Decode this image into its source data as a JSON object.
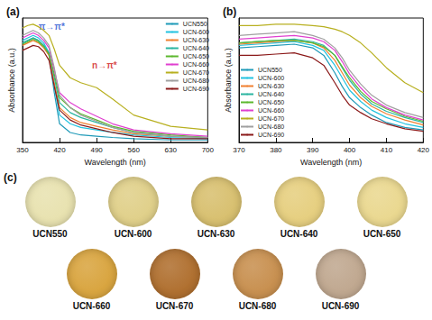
{
  "chart_data": [
    {
      "type": "line",
      "title": "(a)",
      "x_label": "Wavelength (nm)",
      "y_label": "Absorbance (a.u.)",
      "x": [
        350,
        360,
        370,
        380,
        390,
        400,
        410,
        420,
        440,
        460,
        490,
        520,
        560,
        630,
        700
      ],
      "xlim": [
        350,
        700
      ],
      "xticks": [
        350,
        420,
        490,
        560,
        630,
        700
      ],
      "ylim": [
        0,
        1
      ],
      "tick_labels": "x",
      "legend": "upper right",
      "series": [
        {
          "name": "UCN550",
          "color": "#1f9ab8",
          "values": [
            0.8,
            0.82,
            0.84,
            0.82,
            0.78,
            0.7,
            0.4,
            0.15,
            0.08,
            0.06,
            0.05,
            0.04,
            0.03,
            0.02,
            0.02
          ]
        },
        {
          "name": "UCN-600",
          "color": "#22c3e0",
          "values": [
            0.82,
            0.84,
            0.86,
            0.84,
            0.8,
            0.72,
            0.45,
            0.22,
            0.15,
            0.12,
            0.1,
            0.08,
            0.06,
            0.04,
            0.03
          ]
        },
        {
          "name": "UCN-630",
          "color": "#f08030",
          "values": [
            0.78,
            0.8,
            0.82,
            0.8,
            0.76,
            0.7,
            0.48,
            0.28,
            0.2,
            0.16,
            0.13,
            0.1,
            0.07,
            0.05,
            0.04
          ]
        },
        {
          "name": "UCN-640",
          "color": "#2bb5a0",
          "values": [
            0.8,
            0.82,
            0.84,
            0.82,
            0.78,
            0.72,
            0.52,
            0.32,
            0.24,
            0.2,
            0.16,
            0.12,
            0.08,
            0.05,
            0.04
          ]
        },
        {
          "name": "UCN-650",
          "color": "#5cb82e",
          "values": [
            0.79,
            0.81,
            0.83,
            0.81,
            0.77,
            0.71,
            0.55,
            0.36,
            0.28,
            0.23,
            0.18,
            0.13,
            0.09,
            0.06,
            0.04
          ]
        },
        {
          "name": "UCN-660",
          "color": "#e040d0",
          "values": [
            0.84,
            0.86,
            0.88,
            0.86,
            0.82,
            0.76,
            0.58,
            0.4,
            0.32,
            0.27,
            0.21,
            0.15,
            0.1,
            0.07,
            0.05
          ]
        },
        {
          "name": "UCN-670",
          "color": "#b8b020",
          "values": [
            0.92,
            0.94,
            0.95,
            0.93,
            0.9,
            0.86,
            0.75,
            0.62,
            0.52,
            0.48,
            0.44,
            0.35,
            0.22,
            0.13,
            0.1
          ]
        },
        {
          "name": "UCN-680",
          "color": "#a0a0a0",
          "values": [
            0.86,
            0.88,
            0.9,
            0.88,
            0.84,
            0.78,
            0.6,
            0.38,
            0.28,
            0.22,
            0.17,
            0.12,
            0.08,
            0.05,
            0.04
          ]
        },
        {
          "name": "UCN-690",
          "color": "#8b1a1a",
          "values": [
            0.74,
            0.76,
            0.78,
            0.77,
            0.73,
            0.66,
            0.45,
            0.26,
            0.18,
            0.14,
            0.11,
            0.08,
            0.05,
            0.03,
            0.03
          ]
        }
      ],
      "annotations": [
        {
          "text": "π→π*",
          "x": 405,
          "y": 0.93,
          "color": "#1f4fd0"
        },
        {
          "text": "n→π*",
          "x": 505,
          "y": 0.62,
          "color": "#d01818"
        }
      ]
    },
    {
      "type": "line",
      "title": "(b)",
      "x_label": "Wavelength (nm)",
      "y_label": "Absorbance (a.u.)",
      "x": [
        370,
        375,
        380,
        385,
        390,
        393,
        396,
        398,
        400,
        403,
        406,
        410,
        415,
        420
      ],
      "xlim": [
        370,
        420
      ],
      "xticks": [
        370,
        380,
        390,
        400,
        410,
        420
      ],
      "ylim": [
        0,
        1
      ],
      "tick_labels": "x",
      "legend": "lower left",
      "series": [
        {
          "name": "UCN550",
          "color": "#1f9ab8",
          "values": [
            0.76,
            0.77,
            0.78,
            0.79,
            0.76,
            0.7,
            0.56,
            0.45,
            0.36,
            0.28,
            0.22,
            0.16,
            0.12,
            0.1
          ]
        },
        {
          "name": "UCN-600",
          "color": "#22c3e0",
          "values": [
            0.78,
            0.79,
            0.8,
            0.81,
            0.78,
            0.74,
            0.62,
            0.52,
            0.42,
            0.33,
            0.26,
            0.2,
            0.15,
            0.12
          ]
        },
        {
          "name": "UCN-630",
          "color": "#f08030",
          "values": [
            0.79,
            0.8,
            0.81,
            0.82,
            0.8,
            0.76,
            0.66,
            0.56,
            0.46,
            0.36,
            0.29,
            0.23,
            0.18,
            0.14
          ]
        },
        {
          "name": "UCN-640",
          "color": "#2bb5a0",
          "values": [
            0.8,
            0.81,
            0.82,
            0.83,
            0.81,
            0.78,
            0.7,
            0.6,
            0.5,
            0.39,
            0.31,
            0.25,
            0.2,
            0.16
          ]
        },
        {
          "name": "UCN-650",
          "color": "#5cb82e",
          "values": [
            0.8,
            0.81,
            0.82,
            0.82,
            0.8,
            0.77,
            0.7,
            0.61,
            0.52,
            0.41,
            0.33,
            0.27,
            0.21,
            0.17
          ]
        },
        {
          "name": "UCN-660",
          "color": "#e040d0",
          "values": [
            0.83,
            0.84,
            0.85,
            0.86,
            0.84,
            0.81,
            0.74,
            0.65,
            0.55,
            0.44,
            0.35,
            0.28,
            0.22,
            0.18
          ]
        },
        {
          "name": "UCN-670",
          "color": "#b8b020",
          "values": [
            0.94,
            0.94,
            0.95,
            0.95,
            0.94,
            0.93,
            0.91,
            0.89,
            0.86,
            0.8,
            0.72,
            0.6,
            0.48,
            0.4
          ]
        },
        {
          "name": "UCN-680",
          "color": "#a0a0a0",
          "values": [
            0.86,
            0.87,
            0.88,
            0.89,
            0.86,
            0.83,
            0.76,
            0.68,
            0.58,
            0.47,
            0.38,
            0.3,
            0.24,
            0.2
          ]
        },
        {
          "name": "UCN-690",
          "color": "#8b1a1a",
          "values": [
            0.7,
            0.7,
            0.71,
            0.72,
            0.68,
            0.62,
            0.48,
            0.38,
            0.3,
            0.24,
            0.19,
            0.15,
            0.11,
            0.09
          ]
        }
      ]
    }
  ],
  "panel_c": {
    "label": "(c)",
    "samples": [
      {
        "label": "UCN550",
        "color": "#e8e2b0"
      },
      {
        "label": "UCN-600",
        "color": "#e0d08a"
      },
      {
        "label": "UCN-630",
        "color": "#d8c070"
      },
      {
        "label": "UCN-640",
        "color": "#e6cf80"
      },
      {
        "label": "UCN-650",
        "color": "#ead890"
      },
      {
        "label": "UCN-660",
        "color": "#d9a540"
      },
      {
        "label": "UCN-670",
        "color": "#b07030"
      },
      {
        "label": "UCN-680",
        "color": "#c89050"
      },
      {
        "label": "UCN-690",
        "color": "#c0a890"
      }
    ]
  }
}
